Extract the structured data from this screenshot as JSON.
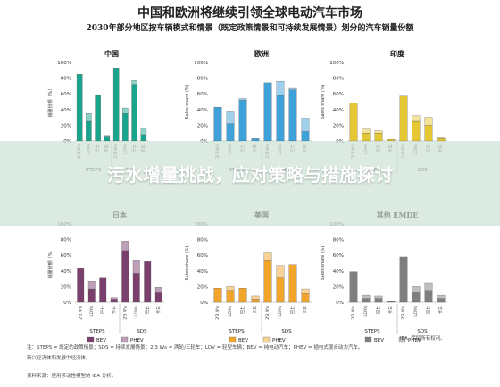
{
  "title": "中国和欧洲将继续引领全球电动汽车市场",
  "subtitle": "2030年部分地区按车辆模式和情景（既定政策情景和可持续发展情景）划分的汽车销量份额",
  "overlay_text": "污水增量挑战，应对策略与措施探讨",
  "footnote_line1": "注：STEPS = 既定的政策情景；SDS = 持续发展情景；2/3 Ws = 两轮/三轮车；LDV = 轻型车辆；BEV = 纯电动汽车；PHEV = 插电式混合动力汽车。",
  "footnote_line2": "新兴经济体和发展中经济体。",
  "footnote_line3": "资料来源：使用移动性模型的 IEA 分析。",
  "credit": "IEA. 保留所有权利。",
  "colors": {
    "china": "#19a58d",
    "europe": "#3fa1d9",
    "india": "#e5c633",
    "japan": "#7b3f6e",
    "us": "#f2a52b",
    "other": "#7f7f7f",
    "light_factor": "0.5"
  },
  "chart_data": [
    {
      "type": "bar",
      "title": "中国",
      "series": [
        {
          "name": "BEV",
          "values": [
            85,
            25,
            58,
            5,
            93,
            35,
            72,
            8
          ]
        },
        {
          "name": "PHEV",
          "values": [
            0,
            10,
            0,
            2,
            0,
            7,
            5,
            8
          ]
        }
      ],
      "categories": [
        "2/3 Ws",
        "LDVs",
        "巴士",
        "卡车",
        "2/3 Ws",
        "LDVs",
        "巴士",
        "卡车"
      ],
      "groups": [
        "STEPS",
        "SDS"
      ],
      "ylim": [
        0,
        100
      ],
      "yticks": [
        "0%",
        "20%",
        "40%",
        "60%",
        "80%",
        "100%"
      ],
      "ylabel": "销量份额（%）"
    },
    {
      "type": "bar",
      "title": "欧洲",
      "series": [
        {
          "name": "BEV",
          "values": [
            43,
            22,
            52,
            3,
            74,
            58,
            65,
            12
          ]
        },
        {
          "name": "PHEV",
          "values": [
            0,
            15,
            2,
            0,
            0,
            18,
            2,
            17
          ]
        }
      ],
      "categories": [
        "2/3 Ws",
        "LDVs",
        "巴士",
        "卡车",
        "2/3 Ws",
        "LDVs",
        "巴士",
        "卡车"
      ],
      "groups": [
        "STEPS",
        "SDS"
      ],
      "ylim": [
        0,
        100
      ],
      "yticks": [
        "0%",
        "20%",
        "40%",
        "60%",
        "80%",
        "100%"
      ],
      "ylabel": "Sales share (%)"
    },
    {
      "type": "bar",
      "title": "印度",
      "series": [
        {
          "name": "BEV",
          "values": [
            48,
            10,
            10,
            2,
            57,
            25,
            20,
            3
          ]
        },
        {
          "name": "PHEV",
          "values": [
            0,
            5,
            3,
            0,
            0,
            7,
            10,
            1
          ]
        }
      ],
      "categories": [
        "2/3 Ws",
        "LDVs",
        "巴士",
        "卡车",
        "2/3 Ws",
        "LDVs",
        "巴士",
        "卡车"
      ],
      "groups": [
        "STEPS",
        "SDS"
      ],
      "ylim": [
        0,
        100
      ],
      "yticks": [
        "0%",
        "20%",
        "40%",
        "60%",
        "80%",
        "100%"
      ],
      "ylabel": "Sales share (%)"
    },
    {
      "type": "bar",
      "title": "日本",
      "series": [
        {
          "name": "BEV",
          "values": [
            43,
            17,
            31,
            4,
            66,
            37,
            52,
            12
          ]
        },
        {
          "name": "PHEV",
          "values": [
            0,
            10,
            0,
            2,
            12,
            16,
            0,
            7
          ]
        }
      ],
      "categories": [
        "2/3 Ws",
        "LDVs",
        "巴士",
        "卡车",
        "2/3 Ws",
        "LDVs",
        "巴士",
        "卡车"
      ],
      "groups": [
        "STEPS",
        "SDS"
      ],
      "ylim": [
        0,
        100
      ],
      "yticks": [
        "0%",
        "20%",
        "40%",
        "60%",
        "80%",
        "100%"
      ],
      "ylabel": "销量份额（%）"
    },
    {
      "type": "bar",
      "title": "美国",
      "series": [
        {
          "name": "BEV",
          "values": [
            18,
            15,
            18,
            4,
            53,
            31,
            48,
            11
          ]
        },
        {
          "name": "PHEV",
          "values": [
            0,
            5,
            0,
            4,
            10,
            16,
            0,
            6
          ]
        }
      ],
      "categories": [
        "2/3 Ws",
        "LDVs",
        "巴士",
        "卡车",
        "2/3 Ws",
        "LDVs",
        "巴士",
        "卡车"
      ],
      "groups": [
        "STEPS",
        "SDS"
      ],
      "ylim": [
        0,
        100
      ],
      "yticks": [
        "0%",
        "20%",
        "40%",
        "60%",
        "80%",
        "100%"
      ],
      "ylabel": "Sales share (%)"
    },
    {
      "type": "bar",
      "title": "其他 EMDE",
      "series": [
        {
          "name": "BEV",
          "values": [
            39,
            5,
            5,
            1,
            58,
            12,
            15,
            5
          ]
        },
        {
          "name": "PHEV",
          "values": [
            0,
            4,
            3,
            0,
            0,
            8,
            10,
            4
          ]
        }
      ],
      "categories": [
        "2/3 Ws",
        "LDVs",
        "巴士",
        "卡车",
        "2/3 Ws",
        "LDVs",
        "巴士",
        "卡车"
      ],
      "groups": [
        "STEPS",
        "SDS"
      ],
      "ylim": [
        0,
        100
      ],
      "yticks": [
        "0%",
        "20%",
        "40%",
        "60%",
        "80%",
        "100%"
      ],
      "ylabel": "Sales share (%)"
    }
  ]
}
